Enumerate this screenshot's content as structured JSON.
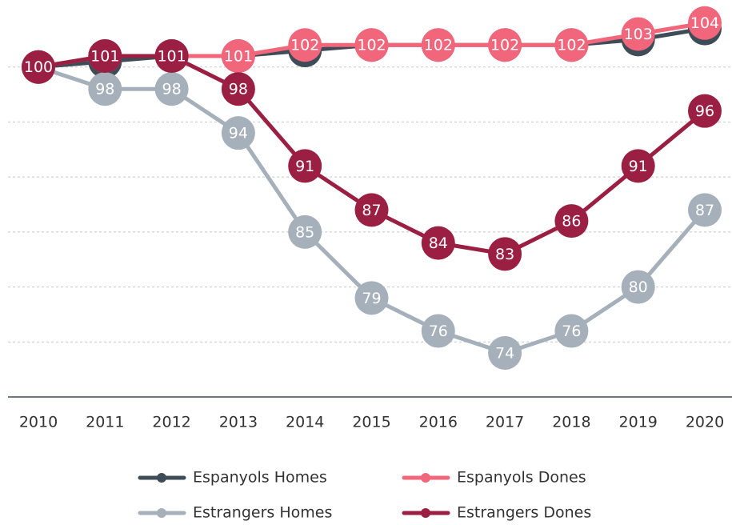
{
  "chart_data": {
    "type": "line",
    "categories": [
      "2010",
      "2011",
      "2012",
      "2013",
      "2014",
      "2015",
      "2016",
      "2017",
      "2018",
      "2019",
      "2020"
    ],
    "series": [
      {
        "name": "Espanyols Homes",
        "color": "#3e4c58",
        "labels": false,
        "values": [
          100,
          100.5,
          101,
          101,
          101.5,
          102,
          102,
          102,
          102,
          102.5,
          103.5
        ]
      },
      {
        "name": "Espanyols Dones",
        "color": "#f2667c",
        "labels": true,
        "values": [
          100,
          101,
          101,
          101,
          102,
          102,
          102,
          102,
          102,
          103,
          104
        ]
      },
      {
        "name": "Estrangers Homes",
        "color": "#a6b0ba",
        "labels": true,
        "values": [
          100,
          98,
          98,
          94,
          85,
          79,
          76,
          74,
          76,
          80,
          87
        ]
      },
      {
        "name": "Estrangers Dones",
        "color": "#9a1f42",
        "labels": true,
        "values": [
          100,
          101,
          101,
          98,
          91,
          87,
          84,
          83,
          86,
          91,
          96
        ]
      }
    ],
    "ylim": [
      70,
      105
    ],
    "yticks": [
      75,
      80,
      85,
      90,
      95,
      100
    ],
    "ytick_labels": false,
    "grid": true
  }
}
